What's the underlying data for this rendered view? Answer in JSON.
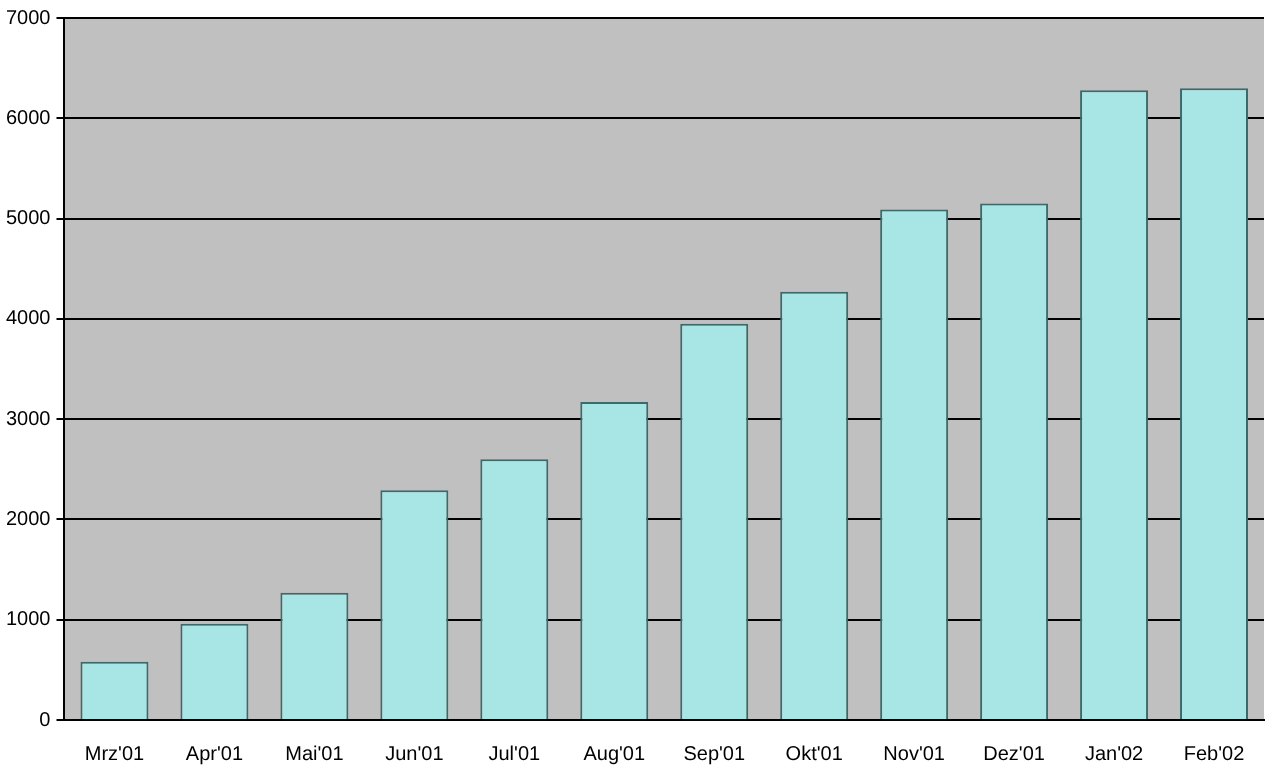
{
  "chart_data": {
    "type": "bar",
    "categories": [
      "Mrz'01",
      "Apr'01",
      "Mai'01",
      "Jun'01",
      "Jul'01",
      "Aug'01",
      "Sep'01",
      "Okt'01",
      "Nov'01",
      "Dez'01",
      "Jan'02",
      "Feb'02"
    ],
    "values": [
      580,
      960,
      1270,
      2290,
      2600,
      3170,
      3950,
      4270,
      5090,
      5150,
      6280,
      6300
    ],
    "color": "#a8e6e6",
    "ylim": [
      0,
      7000
    ],
    "yticks": [
      0,
      1000,
      2000,
      3000,
      4000,
      5000,
      6000,
      7000
    ],
    "grid": "y",
    "legend": false
  }
}
